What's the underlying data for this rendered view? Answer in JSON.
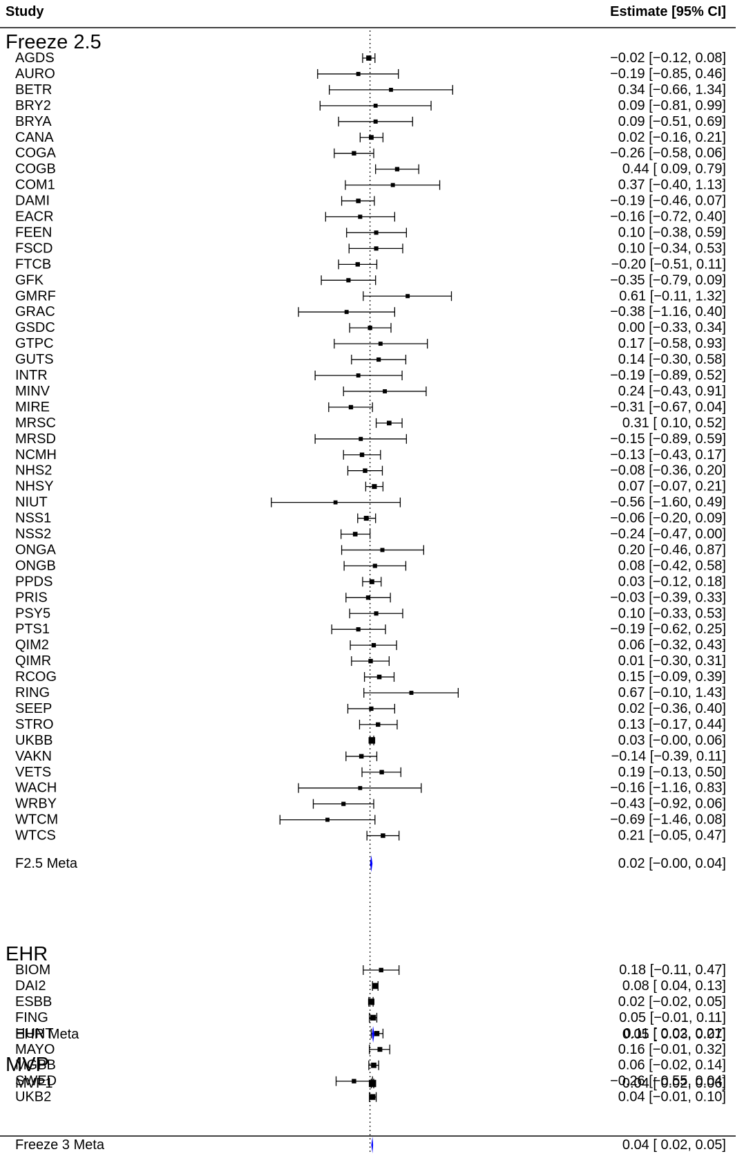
{
  "header": {
    "study_col": "Study",
    "estimate_col": "Estimate [95% CI]"
  },
  "chart_data": {
    "type": "forest",
    "xlim": [
      -1.62,
      1.46
    ],
    "reference_line": 0.0,
    "groups": [
      {
        "name": "Freeze 2.5",
        "studies": [
          {
            "name": "AGDS",
            "est": -0.02,
            "lo": -0.12,
            "hi": 0.08,
            "label": "−0.02 [−0.12, 0.08]"
          },
          {
            "name": "AURO",
            "est": -0.19,
            "lo": -0.85,
            "hi": 0.46,
            "label": "−0.19 [−0.85, 0.46]"
          },
          {
            "name": "BETR",
            "est": 0.34,
            "lo": -0.66,
            "hi": 1.34,
            "label": "0.34 [−0.66, 1.34]"
          },
          {
            "name": "BRY2",
            "est": 0.09,
            "lo": -0.81,
            "hi": 0.99,
            "label": "0.09 [−0.81, 0.99]"
          },
          {
            "name": "BRYA",
            "est": 0.09,
            "lo": -0.51,
            "hi": 0.69,
            "label": "0.09 [−0.51, 0.69]"
          },
          {
            "name": "CANA",
            "est": 0.02,
            "lo": -0.16,
            "hi": 0.21,
            "label": "0.02 [−0.16, 0.21]"
          },
          {
            "name": "COGA",
            "est": -0.26,
            "lo": -0.58,
            "hi": 0.06,
            "label": "−0.26 [−0.58, 0.06]"
          },
          {
            "name": "COGB",
            "est": 0.44,
            "lo": 0.09,
            "hi": 0.79,
            "label": "0.44 [ 0.09, 0.79]"
          },
          {
            "name": "COM1",
            "est": 0.37,
            "lo": -0.4,
            "hi": 1.13,
            "label": "0.37 [−0.40, 1.13]"
          },
          {
            "name": "DAMI",
            "est": -0.19,
            "lo": -0.46,
            "hi": 0.07,
            "label": "−0.19 [−0.46, 0.07]"
          },
          {
            "name": "EACR",
            "est": -0.16,
            "lo": -0.72,
            "hi": 0.4,
            "label": "−0.16 [−0.72, 0.40]"
          },
          {
            "name": "FEEN",
            "est": 0.1,
            "lo": -0.38,
            "hi": 0.59,
            "label": "0.10 [−0.38, 0.59]"
          },
          {
            "name": "FSCD",
            "est": 0.1,
            "lo": -0.34,
            "hi": 0.53,
            "label": "0.10 [−0.34, 0.53]"
          },
          {
            "name": "FTCB",
            "est": -0.2,
            "lo": -0.51,
            "hi": 0.11,
            "label": "−0.20 [−0.51, 0.11]"
          },
          {
            "name": "GFK",
            "est": -0.35,
            "lo": -0.79,
            "hi": 0.09,
            "label": "−0.35 [−0.79, 0.09]"
          },
          {
            "name": "GMRF",
            "est": 0.61,
            "lo": -0.11,
            "hi": 1.32,
            "label": "0.61 [−0.11, 1.32]"
          },
          {
            "name": "GRAC",
            "est": -0.38,
            "lo": -1.16,
            "hi": 0.4,
            "label": "−0.38 [−1.16, 0.40]"
          },
          {
            "name": "GSDC",
            "est": 0.0,
            "lo": -0.33,
            "hi": 0.34,
            "label": "0.00 [−0.33, 0.34]"
          },
          {
            "name": "GTPC",
            "est": 0.17,
            "lo": -0.58,
            "hi": 0.93,
            "label": "0.17 [−0.58, 0.93]"
          },
          {
            "name": "GUTS",
            "est": 0.14,
            "lo": -0.3,
            "hi": 0.58,
            "label": "0.14 [−0.30, 0.58]"
          },
          {
            "name": "INTR",
            "est": -0.19,
            "lo": -0.89,
            "hi": 0.52,
            "label": "−0.19 [−0.89, 0.52]"
          },
          {
            "name": "MINV",
            "est": 0.24,
            "lo": -0.43,
            "hi": 0.91,
            "label": "0.24 [−0.43, 0.91]"
          },
          {
            "name": "MIRE",
            "est": -0.31,
            "lo": -0.67,
            "hi": 0.04,
            "label": "−0.31 [−0.67, 0.04]"
          },
          {
            "name": "MRSC",
            "est": 0.31,
            "lo": 0.1,
            "hi": 0.52,
            "label": "0.31 [ 0.10, 0.52]"
          },
          {
            "name": "MRSD",
            "est": -0.15,
            "lo": -0.89,
            "hi": 0.59,
            "label": "−0.15 [−0.89, 0.59]"
          },
          {
            "name": "NCMH",
            "est": -0.13,
            "lo": -0.43,
            "hi": 0.17,
            "label": "−0.13 [−0.43, 0.17]"
          },
          {
            "name": "NHS2",
            "est": -0.08,
            "lo": -0.36,
            "hi": 0.2,
            "label": "−0.08 [−0.36, 0.20]"
          },
          {
            "name": "NHSY",
            "est": 0.07,
            "lo": -0.07,
            "hi": 0.21,
            "label": "0.07 [−0.07, 0.21]"
          },
          {
            "name": "NIUT",
            "est": -0.56,
            "lo": -1.6,
            "hi": 0.49,
            "label": "−0.56 [−1.60, 0.49]"
          },
          {
            "name": "NSS1",
            "est": -0.06,
            "lo": -0.2,
            "hi": 0.09,
            "label": "−0.06 [−0.20, 0.09]"
          },
          {
            "name": "NSS2",
            "est": -0.24,
            "lo": -0.47,
            "hi": 0.0,
            "label": "−0.24 [−0.47, 0.00]"
          },
          {
            "name": "ONGA",
            "est": 0.2,
            "lo": -0.46,
            "hi": 0.87,
            "label": "0.20 [−0.46, 0.87]"
          },
          {
            "name": "ONGB",
            "est": 0.08,
            "lo": -0.42,
            "hi": 0.58,
            "label": "0.08 [−0.42, 0.58]"
          },
          {
            "name": "PPDS",
            "est": 0.03,
            "lo": -0.12,
            "hi": 0.18,
            "label": "0.03 [−0.12, 0.18]"
          },
          {
            "name": "PRIS",
            "est": -0.03,
            "lo": -0.39,
            "hi": 0.33,
            "label": "−0.03 [−0.39, 0.33]"
          },
          {
            "name": "PSY5",
            "est": 0.1,
            "lo": -0.33,
            "hi": 0.53,
            "label": "0.10 [−0.33, 0.53]"
          },
          {
            "name": "PTS1",
            "est": -0.19,
            "lo": -0.62,
            "hi": 0.25,
            "label": "−0.19 [−0.62, 0.25]"
          },
          {
            "name": "QIM2",
            "est": 0.06,
            "lo": -0.32,
            "hi": 0.43,
            "label": "0.06 [−0.32, 0.43]"
          },
          {
            "name": "QIMR",
            "est": 0.01,
            "lo": -0.3,
            "hi": 0.31,
            "label": "0.01 [−0.30, 0.31]"
          },
          {
            "name": "RCOG",
            "est": 0.15,
            "lo": -0.09,
            "hi": 0.39,
            "label": "0.15 [−0.09, 0.39]"
          },
          {
            "name": "RING",
            "est": 0.67,
            "lo": -0.1,
            "hi": 1.43,
            "label": "0.67 [−0.10, 1.43]"
          },
          {
            "name": "SEEP",
            "est": 0.02,
            "lo": -0.36,
            "hi": 0.4,
            "label": "0.02 [−0.36, 0.40]"
          },
          {
            "name": "STRO",
            "est": 0.13,
            "lo": -0.17,
            "hi": 0.44,
            "label": "0.13 [−0.17, 0.44]"
          },
          {
            "name": "UKBB",
            "est": 0.03,
            "lo": 0.0,
            "hi": 0.06,
            "label": "0.03 [−0.00, 0.06]"
          },
          {
            "name": "VAKN",
            "est": -0.14,
            "lo": -0.39,
            "hi": 0.11,
            "label": "−0.14 [−0.39, 0.11]"
          },
          {
            "name": "VETS",
            "est": 0.19,
            "lo": -0.13,
            "hi": 0.5,
            "label": "0.19 [−0.13, 0.50]"
          },
          {
            "name": "WACH",
            "est": -0.16,
            "lo": -1.16,
            "hi": 0.83,
            "label": "−0.16 [−1.16, 0.83]"
          },
          {
            "name": "WRBY",
            "est": -0.43,
            "lo": -0.92,
            "hi": 0.06,
            "label": "−0.43 [−0.92, 0.06]"
          },
          {
            "name": "WTCM",
            "est": -0.69,
            "lo": -1.46,
            "hi": 0.08,
            "label": "−0.69 [−1.46, 0.08]"
          },
          {
            "name": "WTCS",
            "est": 0.21,
            "lo": -0.05,
            "hi": 0.47,
            "label": "0.21 [−0.05, 0.47]"
          }
        ],
        "meta": {
          "name": "F2.5 Meta",
          "est": 0.02,
          "lo": 0.0,
          "hi": 0.04,
          "label": "0.02 [−0.00, 0.04]"
        }
      },
      {
        "name": "EHR",
        "studies": [
          {
            "name": "BIOM",
            "est": 0.18,
            "lo": -0.11,
            "hi": 0.47,
            "label": "0.18 [−0.11, 0.47]"
          },
          {
            "name": "DAI2",
            "est": 0.08,
            "lo": 0.04,
            "hi": 0.13,
            "label": "0.08 [ 0.04, 0.13]"
          },
          {
            "name": "ESBB",
            "est": 0.02,
            "lo": -0.02,
            "hi": 0.05,
            "label": "0.02 [−0.02, 0.05]"
          },
          {
            "name": "FING",
            "est": 0.05,
            "lo": -0.01,
            "hi": 0.11,
            "label": "0.05 [−0.01, 0.11]"
          },
          {
            "name": "HUNT",
            "est": 0.11,
            "lo": 0.02,
            "hi": 0.21,
            "label": "0.11 [ 0.02, 0.21]"
          },
          {
            "name": "MAYO",
            "est": 0.16,
            "lo": -0.01,
            "hi": 0.32,
            "label": "0.16 [−0.01, 0.32]"
          },
          {
            "name": "MGBB",
            "est": 0.06,
            "lo": -0.02,
            "hi": 0.14,
            "label": "0.06 [−0.02, 0.14]"
          },
          {
            "name": "SWED",
            "est": -0.26,
            "lo": -0.55,
            "hi": 0.04,
            "label": "−0.26 [−0.55, 0.04]"
          },
          {
            "name": "UKB2",
            "est": 0.04,
            "lo": -0.01,
            "hi": 0.1,
            "label": "0.04 [−0.01, 0.10]"
          }
        ],
        "meta": {
          "name": "EHR Meta",
          "est": 0.05,
          "lo": 0.03,
          "hi": 0.07,
          "label": "0.05 [ 0.03, 0.07]"
        }
      },
      {
        "name": "MVP",
        "studies": [
          {
            "name": "MVP1",
            "est": 0.04,
            "lo": 0.02,
            "hi": 0.06,
            "label": "0.04 [ 0.02, 0.06]"
          }
        ],
        "meta": null
      }
    ],
    "overall_meta": {
      "name": "Freeze 3 Meta",
      "est": 0.04,
      "lo": 0.02,
      "hi": 0.05,
      "label": "0.04 [ 0.02, 0.05]"
    },
    "colors": {
      "meta_diamond": "#0000ff",
      "study_marks": "#000000",
      "reference_line": "#000000"
    }
  }
}
